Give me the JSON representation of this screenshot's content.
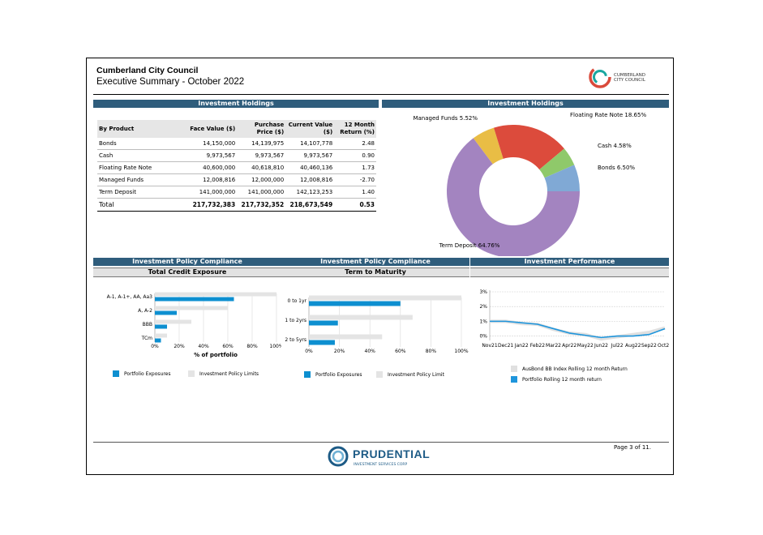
{
  "header": {
    "title": "Cumberland City Council",
    "subtitle": "Executive Summary - October 2022",
    "logo_text": [
      "CUMBERLAND",
      "CITY COUNCIL"
    ]
  },
  "sections": {
    "holdings_left": "Investment Holdings",
    "holdings_right": "Investment Holdings",
    "compliance_1": "Investment Policy Compliance",
    "compliance_2": "Investment Policy Compliance",
    "performance": "Investment Performance",
    "credit_sub": "Total Credit Exposure",
    "maturity_sub": "Term to Maturity"
  },
  "holdings_table": {
    "headers": [
      "By Product",
      "Face Value ($)",
      "Purchase Price ($)",
      "Current Value ($)",
      "12 Month Return (%)"
    ],
    "rows": [
      [
        "Bonds",
        "14,150,000",
        "14,139,975",
        "14,107,778",
        "2.48"
      ],
      [
        "Cash",
        "9,973,567",
        "9,973,567",
        "9,973,567",
        "0.90"
      ],
      [
        "Floating Rate Note",
        "40,600,000",
        "40,618,810",
        "40,460,136",
        "1.73"
      ],
      [
        "Managed Funds",
        "12,008,816",
        "12,000,000",
        "12,008,816",
        "-2.70"
      ],
      [
        "Term Deposit",
        "141,000,000",
        "141,000,000",
        "142,123,253",
        "1.40"
      ]
    ],
    "total": [
      "Total",
      "217,732,383",
      "217,732,352",
      "218,673,549",
      "0.53"
    ]
  },
  "chart_data": [
    {
      "type": "pie",
      "title": "Investment Holdings",
      "labels": [
        "Term Deposit",
        "Managed Funds",
        "Floating Rate Note",
        "Cash",
        "Bonds"
      ],
      "values": [
        64.76,
        5.52,
        18.65,
        4.58,
        6.5
      ],
      "slice_labels": [
        "Term Deposit 64.76%",
        "Managed Funds 5.52%",
        "Floating Rate Note 18.65%",
        "Cash 4.58%",
        "Bonds 6.50%"
      ],
      "colors": [
        "#a384c0",
        "#e9bd45",
        "#dc4b3c",
        "#8fc96a",
        "#80a9d5"
      ]
    },
    {
      "type": "bar",
      "title": "Total Credit Exposure",
      "categories": [
        "A-1, A-1+, AA, Aa3",
        "A, A-2",
        "BBB",
        "TCm"
      ],
      "series": [
        {
          "name": "Portfolio Exposures",
          "values": [
            65,
            18,
            10,
            5
          ]
        },
        {
          "name": "Investment Policy Limits",
          "values": [
            100,
            60,
            30,
            10
          ]
        }
      ],
      "xlabel": "% of portfolio",
      "xticks": [
        "0%",
        "20%",
        "40%",
        "60%",
        "80%",
        "100%"
      ],
      "xlim": [
        0,
        100
      ],
      "colors": [
        "#0d8fd0",
        "#e4e4e4"
      ]
    },
    {
      "type": "bar",
      "title": "Term to Maturity",
      "categories": [
        "0 to 1yr",
        "1 to 2yrs",
        "2 to 5yrs"
      ],
      "series": [
        {
          "name": "Portfolio Exposures",
          "values": [
            60,
            19,
            17
          ]
        },
        {
          "name": "Investment Policy Limit",
          "values": [
            100,
            68,
            48
          ]
        }
      ],
      "xticks": [
        "0%",
        "20%",
        "40%",
        "60%",
        "80%",
        "100%"
      ],
      "xlim": [
        0,
        100
      ],
      "colors": [
        "#0d8fd0",
        "#e4e4e4"
      ]
    },
    {
      "type": "line",
      "title": "Investment Performance",
      "x": [
        "Nov21",
        "Dec21",
        "Jan22",
        "Feb22",
        "Mar22",
        "Apr22",
        "May22",
        "Jun22",
        "Jul22",
        "Aug22",
        "Sep22",
        "Oct22"
      ],
      "series": [
        {
          "name": "AusBond BB Index Rolling 12 month Return",
          "values": [
            1.0,
            1.0,
            0.85,
            0.8,
            0.45,
            0.2,
            0.1,
            -0.2,
            -0.05,
            0.1,
            0.25,
            0.55
          ]
        },
        {
          "name": "Portfolio Rolling 12 month return",
          "values": [
            1.0,
            1.0,
            0.9,
            0.8,
            0.5,
            0.2,
            0.05,
            -0.1,
            0.0,
            0.0,
            0.1,
            0.5
          ]
        }
      ],
      "yticks": [
        "0%",
        "1%",
        "2%",
        "3%"
      ],
      "ylim": [
        -0.3,
        3
      ],
      "colors": [
        "#e0e0e0",
        "#1e95dc"
      ]
    }
  ],
  "footer": {
    "brand": "PRUDENTIAL",
    "brand_sub": "INVESTMENT SERVICES CORP",
    "page": "Page 3 of 11."
  }
}
